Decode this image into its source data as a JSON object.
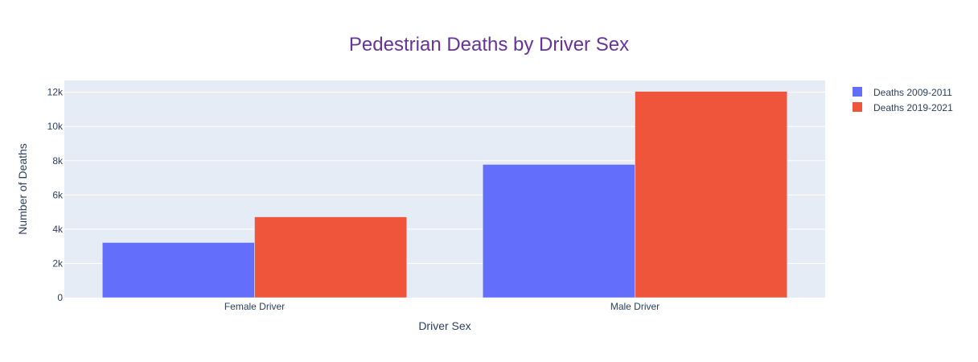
{
  "chart_data": {
    "type": "bar",
    "title": "Pedestrian Deaths by Driver Sex",
    "xlabel": "Driver Sex",
    "ylabel": "Number of Deaths",
    "categories": [
      "Female Driver",
      "Male Driver"
    ],
    "series": [
      {
        "name": "Deaths 2009-2011",
        "values": [
          3220,
          7780
        ]
      },
      {
        "name": "Deaths 2019-2021",
        "values": [
          4720,
          12050
        ]
      }
    ],
    "ylim": [
      0,
      12690
    ],
    "yticks": [
      0,
      2000,
      4000,
      6000,
      8000,
      10000,
      12000
    ],
    "ytick_labels": [
      "0",
      "2k",
      "4k",
      "6k",
      "8k",
      "10k",
      "12k"
    ],
    "grid": true,
    "legend": "top-right"
  },
  "colors": {
    "title": "#663399",
    "series": [
      "#636efa",
      "#ef553b"
    ],
    "plot_bg": "#e5ecf6",
    "grid": "#ffffff",
    "text": "#2a3f5f"
  }
}
